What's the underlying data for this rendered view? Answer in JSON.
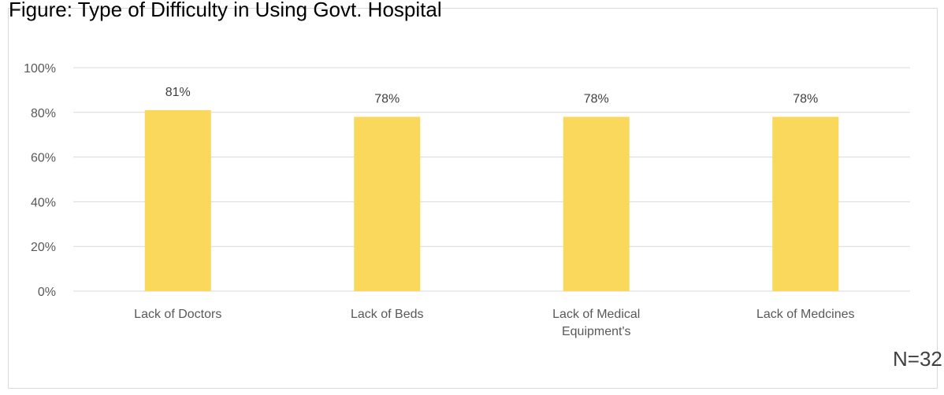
{
  "title": "Figure: Type of Difficulty in Using Govt. Hospital",
  "note": "N=32",
  "chart_data": {
    "type": "bar",
    "title": "Figure: Type of Difficulty in Using Govt. Hospital",
    "categories": [
      "Lack of Doctors",
      "Lack of Beds",
      "Lack of Medical Equipment's",
      "Lack of Medcines"
    ],
    "values": [
      81,
      78,
      78,
      78
    ],
    "data_labels": [
      "81%",
      "78%",
      "78%",
      "78%"
    ],
    "y_ticks": [
      "0%",
      "20%",
      "40%",
      "60%",
      "80%",
      "100%"
    ],
    "ylim": [
      0,
      100
    ],
    "xlabel": "",
    "ylabel": "",
    "grid": true,
    "legend": "none",
    "bar_color": "#FAD85C",
    "grid_color": "#D9D9D9",
    "annotation": "N=32"
  }
}
